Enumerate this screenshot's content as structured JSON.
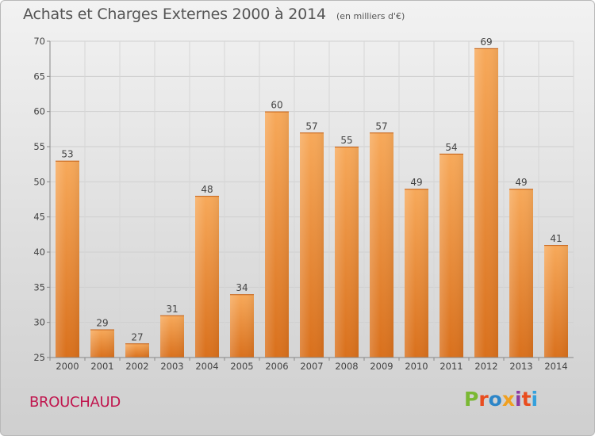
{
  "chart_data": {
    "type": "bar",
    "title": "Achats et Charges Externes 2000 à 2014",
    "subtitle": "(en milliers d'€)",
    "categories": [
      "2000",
      "2001",
      "2002",
      "2003",
      "2004",
      "2005",
      "2006",
      "2007",
      "2008",
      "2009",
      "2010",
      "2011",
      "2012",
      "2013",
      "2014"
    ],
    "values": [
      53,
      29,
      27,
      31,
      48,
      34,
      60,
      57,
      55,
      57,
      49,
      54,
      69,
      49,
      41
    ],
    "ylim": [
      25,
      70
    ],
    "yticks": [
      25,
      30,
      35,
      40,
      45,
      50,
      55,
      60,
      65,
      70
    ],
    "grid": true,
    "bar_color": "#e8812c",
    "bar_color_light": "#f7a95a"
  },
  "footer": {
    "place": "BROUCHAUD",
    "brand": "Proxiti",
    "brand_colors": [
      "#7ab833",
      "#e94d1f",
      "#2d86c8",
      "#f0a020",
      "#8c3aa2",
      "#e94d1f",
      "#34a0dc"
    ]
  }
}
